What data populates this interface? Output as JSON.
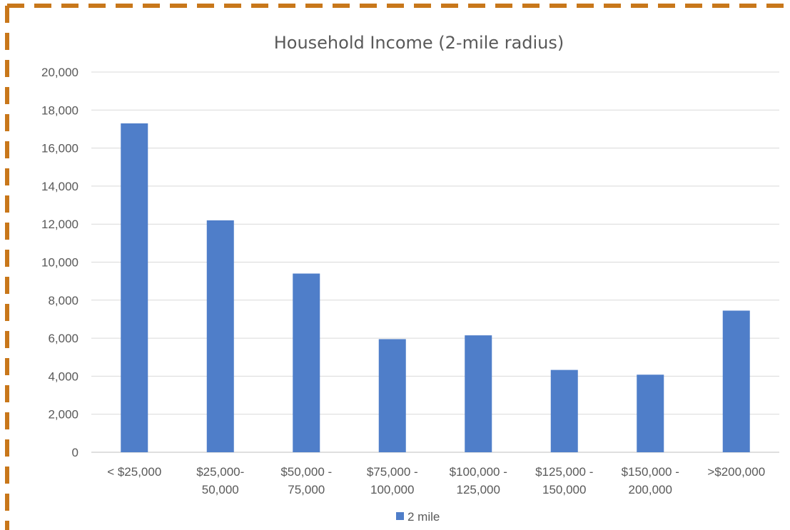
{
  "chart_data": {
    "type": "bar",
    "title": "Household Income (2-mile radius)",
    "categories": [
      [
        "< $25,000"
      ],
      [
        "$25,000-",
        "50,000"
      ],
      [
        "$50,000 -",
        "75,000"
      ],
      [
        "$75,000 -",
        "100,000"
      ],
      [
        "$100,000 -",
        "125,000"
      ],
      [
        "$125,000 -",
        "150,000"
      ],
      [
        "$150,000 -",
        "200,000"
      ],
      [
        ">$200,000"
      ]
    ],
    "series": [
      {
        "name": "2 mile",
        "values": [
          17300,
          12200,
          9400,
          5950,
          6150,
          4330,
          4080,
          7450
        ]
      }
    ],
    "ylim": [
      0,
      20000
    ],
    "yticks": [
      "0",
      "2,000",
      "4,000",
      "6,000",
      "8,000",
      "10,000",
      "12,000",
      "14,000",
      "16,000",
      "18,000",
      "20,000"
    ],
    "grid": true,
    "legend_position": "bottom",
    "colors": {
      "bar": "#4f7ec9",
      "grid": "#d9d9d9",
      "axis": "#bfbfbf",
      "border": "#c8771a",
      "text": "#595959"
    }
  }
}
